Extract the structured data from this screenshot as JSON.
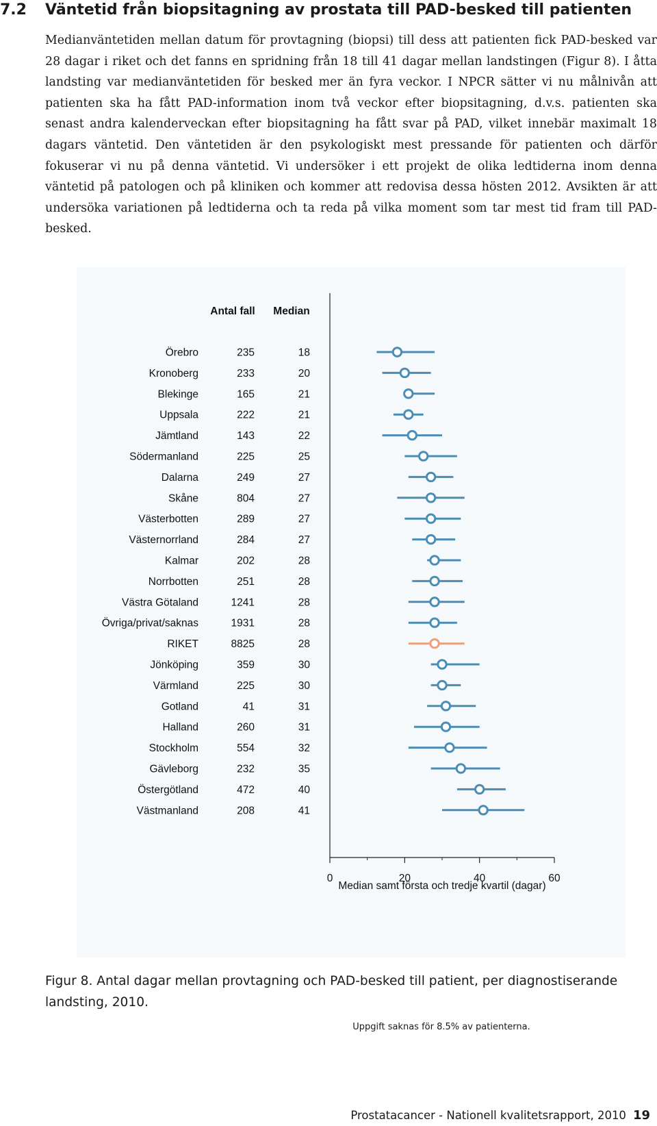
{
  "section": {
    "number": "7.2",
    "title": "Väntetid från biopsitagning av prostata till PAD-besked till patienten"
  },
  "body_text": "Medianväntetiden mellan datum för provtagning (biopsi) till dess att patienten fick PAD-besked var 28 dagar i riket och det fanns en spridning från 18 till 41 dagar mellan landstingen (Figur 8). I åtta landsting var medianväntetiden för besked mer än fyra veckor. I NPCR sätter vi nu målnivån att patienten ska ha fått PAD-information inom två veckor efter biopsitagning, d.v.s. patienten ska senast andra kalenderveckan efter biopsitagning ha fått svar på PAD, vilket innebär maximalt 18 dagars väntetid. Den väntetiden är den psykologiskt mest pressande för patienten och därför fokuserar vi nu på denna väntetid. Vi undersöker i ett projekt de olika ledtiderna inom denna väntetid på patologen och på kliniken och kommer att redovisa dessa hösten 2012. Avsikten är att undersöka variationen på ledtiderna och ta reda på vilka moment som tar mest tid fram till PAD-besked.",
  "chart_data": {
    "type": "forest",
    "column_headers": {
      "count": "Antal fall",
      "median": "Median"
    },
    "rows": [
      {
        "region": "Örebro",
        "count": "235",
        "median": "18",
        "value": 18,
        "q1": 12.5,
        "q3": 28
      },
      {
        "region": "Kronoberg",
        "count": "233",
        "median": "20",
        "value": 20,
        "q1": 14,
        "q3": 27
      },
      {
        "region": "Blekinge",
        "count": "165",
        "median": "21",
        "value": 21,
        "q1": 20,
        "q3": 28
      },
      {
        "region": "Uppsala",
        "count": "222",
        "median": "21",
        "value": 21,
        "q1": 17,
        "q3": 25
      },
      {
        "region": "Jämtland",
        "count": "143",
        "median": "22",
        "value": 22,
        "q1": 14,
        "q3": 30
      },
      {
        "region": "Södermanland",
        "count": "225",
        "median": "25",
        "value": 25,
        "q1": 20,
        "q3": 34
      },
      {
        "region": "Dalarna",
        "count": "249",
        "median": "27",
        "value": 27,
        "q1": 21,
        "q3": 33
      },
      {
        "region": "Skåne",
        "count": "804",
        "median": "27",
        "value": 27,
        "q1": 18,
        "q3": 36
      },
      {
        "region": "Västerbotten",
        "count": "289",
        "median": "27",
        "value": 27,
        "q1": 20,
        "q3": 35
      },
      {
        "region": "Västernorrland",
        "count": "284",
        "median": "27",
        "value": 27,
        "q1": 22,
        "q3": 33.5
      },
      {
        "region": "Kalmar",
        "count": "202",
        "median": "28",
        "value": 28,
        "q1": 26,
        "q3": 35
      },
      {
        "region": "Norrbotten",
        "count": "251",
        "median": "28",
        "value": 28,
        "q1": 22,
        "q3": 35.5
      },
      {
        "region": "Västra Götaland",
        "count": "1241",
        "median": "28",
        "value": 28,
        "q1": 21,
        "q3": 36
      },
      {
        "region": "Övriga/privat/saknas",
        "count": "1931",
        "median": "28",
        "value": 28,
        "q1": 21,
        "q3": 34
      },
      {
        "region": "RIKET",
        "count": "8825",
        "median": "28",
        "value": 28,
        "q1": 21,
        "q3": 36,
        "highlight": true
      },
      {
        "region": "Jönköping",
        "count": "359",
        "median": "30",
        "value": 30,
        "q1": 27,
        "q3": 40
      },
      {
        "region": "Värmland",
        "count": "225",
        "median": "30",
        "value": 30,
        "q1": 27,
        "q3": 35
      },
      {
        "region": "Gotland",
        "count": "41",
        "median": "31",
        "value": 31,
        "q1": 26,
        "q3": 39
      },
      {
        "region": "Halland",
        "count": "260",
        "median": "31",
        "value": 31,
        "q1": 22.5,
        "q3": 40
      },
      {
        "region": "Stockholm",
        "count": "554",
        "median": "32",
        "value": 32,
        "q1": 21,
        "q3": 42
      },
      {
        "region": "Gävleborg",
        "count": "232",
        "median": "35",
        "value": 35,
        "q1": 27,
        "q3": 45.5
      },
      {
        "region": "Östergötland",
        "count": "472",
        "median": "40",
        "value": 40,
        "q1": 34,
        "q3": 47
      },
      {
        "region": "Västmanland",
        "count": "208",
        "median": "41",
        "value": 41,
        "q1": 30,
        "q3": 52
      }
    ],
    "x_axis": {
      "min": 0,
      "max": 60,
      "ticks": [
        0,
        20,
        40,
        60
      ],
      "minor_ticks": [
        10,
        30,
        50
      ]
    },
    "xlabel": "Median samt första och tredje kvartil (dagar)",
    "colors": {
      "series": "#4a8db5",
      "highlight": "#e8a27e",
      "axis": "#222222"
    }
  },
  "figure": {
    "caption": "Figur 8. Antal dagar mellan provtagning och PAD-besked till patient, per diagnostiserande landsting, 2010.",
    "footnote": "Uppgift saknas för 8.5% av patienterna."
  },
  "footer": {
    "text": "Prostatacancer - Nationell kvalitetsrapport, 2010",
    "page_number": "19"
  }
}
